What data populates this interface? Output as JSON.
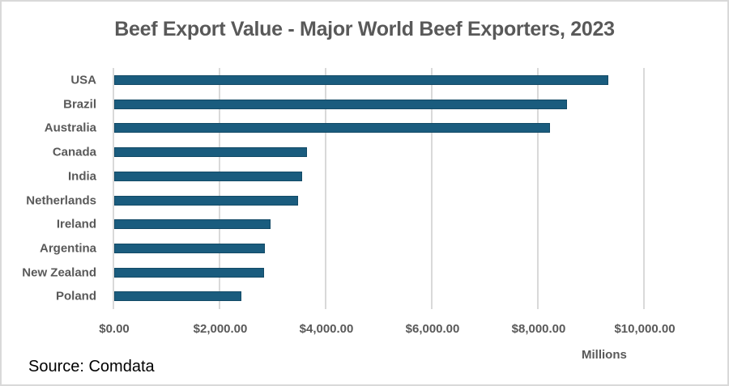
{
  "chart_data": {
    "type": "bar",
    "orientation": "horizontal",
    "title": "Beef Export Value - Major World Beef Exporters,  2023",
    "categories": [
      "USA",
      "Brazil",
      "Australia",
      "Canada",
      "India",
      "Netherlands",
      "Ireland",
      "Argentina",
      "New Zealand",
      "Poland"
    ],
    "values": [
      9310,
      8530,
      8210,
      3630,
      3540,
      3470,
      2950,
      2840,
      2820,
      2400
    ],
    "xlabel": "Millions",
    "ylabel": "",
    "xlim": [
      0,
      10000
    ],
    "x_ticks": [
      0,
      2000,
      4000,
      6000,
      8000,
      10000
    ],
    "x_tick_labels": [
      "$0.00",
      "$2,000.00",
      "$4,000.00",
      "$6,000.00",
      "$8,000.00",
      "$10,000.00"
    ],
    "grid": "vertical",
    "legend": "none",
    "bar_color": "#1a5c7e",
    "source": "Source: Comdata"
  },
  "labels": {
    "title": "Beef Export Value - Major World Beef Exporters,  2023",
    "unit": "Millions",
    "source": "Source: Comdata"
  }
}
